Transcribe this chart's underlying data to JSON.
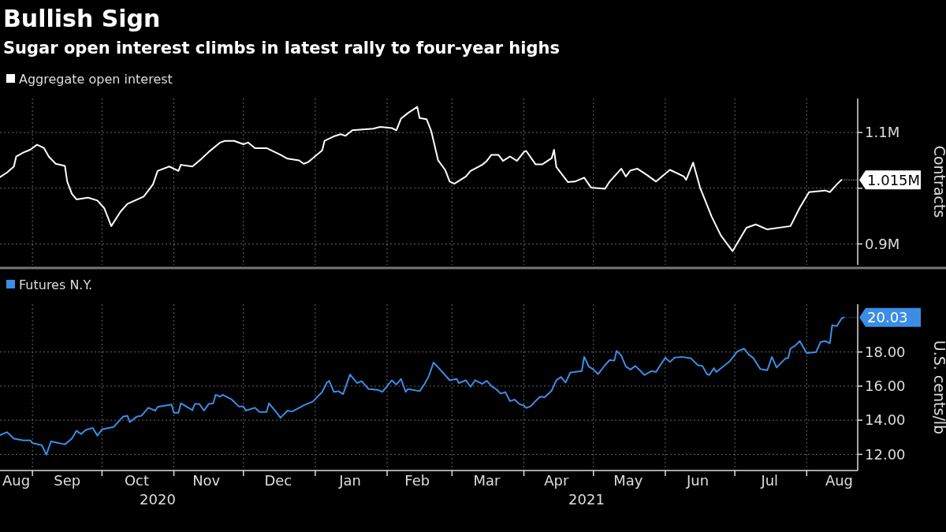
{
  "chart_data": [
    {
      "type": "line",
      "title": "Bullish Sign",
      "subtitle": "Sugar open interest climbs in latest rally to four-year highs",
      "ylabel": "Contracts",
      "legend": "top left",
      "grid": true,
      "tick_labels": "y",
      "xlim": [
        "2020-08-18",
        "2021-08-23"
      ],
      "xticks": [
        {
          "value": "2020-09-01",
          "label": null
        },
        {
          "value": "2020-10-01",
          "label": null
        },
        {
          "value": "2020-11-01",
          "label": null
        },
        {
          "value": "2020-12-01",
          "label": null
        },
        {
          "value": "2021-01-01",
          "label": null
        },
        {
          "value": "2021-02-01",
          "label": null
        },
        {
          "value": "2021-03-01",
          "label": null
        },
        {
          "value": "2021-04-01",
          "label": null
        },
        {
          "value": "2021-05-01",
          "label": null
        },
        {
          "value": "2021-06-01",
          "label": null
        },
        {
          "value": "2021-07-01",
          "label": null
        },
        {
          "value": "2021-08-01",
          "label": null
        }
      ],
      "ylim": [
        862500,
        1161000
      ],
      "yticks": [
        {
          "value": 900000,
          "label": "0.9M"
        },
        {
          "value": 1000000,
          "label": null
        },
        {
          "value": 1100000,
          "label": "1.1M"
        }
      ],
      "annotations": [
        {
          "text": "1.015M",
          "x": "2021-08-16",
          "y": 1015000
        }
      ],
      "series": [
        {
          "name": "Aggregate open interest",
          "color": "#ffffff",
          "x": [
            "2020-08-18",
            "2020-08-21",
            "2020-08-24",
            "2020-08-25",
            "2020-08-28",
            "2020-08-31",
            "2020-09-03",
            "2020-09-06",
            "2020-09-08",
            "2020-09-11",
            "2020-09-15",
            "2020-09-16",
            "2020-09-18",
            "2020-09-20",
            "2020-09-25",
            "2020-09-29",
            "2020-10-02",
            "2020-10-05",
            "2020-10-09",
            "2020-10-12",
            "2020-10-19",
            "2020-10-23",
            "2020-10-25",
            "2020-10-30",
            "2020-11-03",
            "2020-11-04",
            "2020-11-09",
            "2020-11-13",
            "2020-11-16",
            "2020-11-21",
            "2020-11-23",
            "2020-11-27",
            "2020-12-01",
            "2020-12-03",
            "2020-12-06",
            "2020-12-11",
            "2020-12-17",
            "2020-12-20",
            "2020-12-25",
            "2020-12-27",
            "2020-12-29",
            "2021-01-04",
            "2021-01-05",
            "2021-01-09",
            "2021-01-12",
            "2021-01-14",
            "2021-01-17",
            "2021-01-26",
            "2021-01-29",
            "2021-02-03",
            "2021-02-05",
            "2021-02-07",
            "2021-02-10",
            "2021-02-14",
            "2021-02-15",
            "2021-02-18",
            "2021-02-20",
            "2021-02-23",
            "2021-02-26",
            "2021-02-28",
            "2021-03-02",
            "2021-03-07",
            "2021-03-09",
            "2021-03-14",
            "2021-03-16",
            "2021-03-18",
            "2021-03-21",
            "2021-03-23",
            "2021-03-26",
            "2021-03-29",
            "2021-04-01",
            "2021-04-02",
            "2021-04-06",
            "2021-04-09",
            "2021-04-13",
            "2021-04-14",
            "2021-04-15",
            "2021-04-20",
            "2021-04-23",
            "2021-04-27",
            "2021-04-30",
            "2021-05-06",
            "2021-05-08",
            "2021-05-13",
            "2021-05-15",
            "2021-05-17",
            "2021-05-20",
            "2021-05-24",
            "2021-05-28",
            "2021-06-03",
            "2021-06-09",
            "2021-06-10",
            "2021-06-13",
            "2021-06-16",
            "2021-06-21",
            "2021-06-25",
            "2021-06-30",
            "2021-07-06",
            "2021-07-10",
            "2021-07-15",
            "2021-07-25",
            "2021-07-29",
            "2021-08-02",
            "2021-08-09",
            "2021-08-11",
            "2021-08-14",
            "2021-08-16"
          ],
          "values": [
            1020000,
            1028000,
            1039000,
            1057000,
            1064000,
            1069000,
            1078000,
            1072000,
            1057000,
            1044000,
            1040000,
            1012000,
            990000,
            980000,
            983000,
            978000,
            964000,
            932000,
            958000,
            972000,
            985000,
            1007000,
            1031000,
            1039000,
            1031000,
            1042000,
            1039000,
            1053000,
            1065000,
            1082000,
            1085000,
            1085000,
            1079000,
            1082000,
            1072000,
            1072000,
            1060000,
            1053000,
            1050000,
            1044000,
            1047000,
            1068000,
            1085000,
            1093000,
            1097000,
            1094000,
            1104000,
            1107000,
            1110000,
            1108000,
            1104000,
            1125000,
            1135000,
            1146000,
            1126000,
            1124000,
            1103000,
            1050000,
            1033000,
            1012000,
            1008000,
            1021000,
            1031000,
            1042000,
            1049000,
            1060000,
            1060000,
            1049000,
            1057000,
            1049000,
            1065000,
            1067000,
            1043000,
            1043000,
            1054000,
            1069000,
            1038000,
            1011000,
            1012000,
            1019000,
            1001000,
            999000,
            1012000,
            1035000,
            1021000,
            1032000,
            1035000,
            1024000,
            1012000,
            1033000,
            1021000,
            1015000,
            1046000,
            1001000,
            949000,
            915000,
            887000,
            929000,
            935000,
            926000,
            932000,
            965000,
            993000,
            996000,
            993000,
            1007000,
            1015000
          ]
        }
      ]
    },
    {
      "type": "line",
      "ylabel": "U.S. cents/lb",
      "legend": "top left",
      "grid": true,
      "xlim": [
        "2020-08-18",
        "2021-08-23"
      ],
      "xticks": [
        {
          "value": "2020-08-25",
          "label": "Aug"
        },
        {
          "value": "2020-09-01",
          "label": null
        },
        {
          "value": "2020-09-16",
          "label": "Sep"
        },
        {
          "value": "2020-10-01",
          "label": null
        },
        {
          "value": "2020-10-16",
          "label": "Oct"
        },
        {
          "value": "2020-11-01",
          "label": null
        },
        {
          "value": "2020-11-15",
          "label": "Nov"
        },
        {
          "value": "2020-12-01",
          "label": null
        },
        {
          "value": "2020-12-16",
          "label": "Dec"
        },
        {
          "value": "2021-01-01",
          "label": null
        },
        {
          "value": "2021-01-16",
          "label": "Jan"
        },
        {
          "value": "2021-02-01",
          "label": null
        },
        {
          "value": "2021-02-14",
          "label": "Feb"
        },
        {
          "value": "2021-03-01",
          "label": null
        },
        {
          "value": "2021-03-16",
          "label": "Mar"
        },
        {
          "value": "2021-04-01",
          "label": null
        },
        {
          "value": "2021-04-15",
          "label": "Apr"
        },
        {
          "value": "2021-05-01",
          "label": null
        },
        {
          "value": "2021-05-16",
          "label": "May"
        },
        {
          "value": "2021-06-01",
          "label": null
        },
        {
          "value": "2021-06-15",
          "label": "Jun"
        },
        {
          "value": "2021-07-01",
          "label": null
        },
        {
          "value": "2021-07-16",
          "label": "Jul"
        },
        {
          "value": "2021-08-01",
          "label": null
        },
        {
          "value": "2021-08-15",
          "label": "Aug"
        }
      ],
      "ylim": [
        11.05,
        20.8
      ],
      "yticks": [
        {
          "value": 12,
          "label": "12.00"
        },
        {
          "value": 14,
          "label": "14.00"
        },
        {
          "value": 16,
          "label": "16.00"
        },
        {
          "value": 18,
          "label": "18.00"
        }
      ],
      "annotations": [
        {
          "text": "20.03",
          "x": "2021-08-17",
          "y": 20.03
        },
        "2020",
        "2021"
      ],
      "series": [
        {
          "name": "Futures N.Y.",
          "color": "#3a8ee6",
          "x": [
            "2020-08-18",
            "2020-08-21",
            "2020-08-24",
            "2020-08-28",
            "2020-08-31",
            "2020-09-01",
            "2020-09-05",
            "2020-09-07",
            "2020-09-09",
            "2020-09-15",
            "2020-09-18",
            "2020-09-20",
            "2020-09-22",
            "2020-09-24",
            "2020-09-27",
            "2020-09-29",
            "2020-10-01",
            "2020-10-06",
            "2020-10-10",
            "2020-10-12",
            "2020-10-13",
            "2020-10-16",
            "2020-10-18",
            "2020-10-21",
            "2020-10-24",
            "2020-10-25",
            "2020-10-31",
            "2020-11-01",
            "2020-11-03",
            "2020-11-04",
            "2020-11-09",
            "2020-11-10",
            "2020-11-12",
            "2020-11-14",
            "2020-11-16",
            "2020-11-18",
            "2020-11-19",
            "2020-11-21",
            "2020-11-22",
            "2020-11-26",
            "2020-11-29",
            "2020-12-01",
            "2020-12-02",
            "2020-12-06",
            "2020-12-08",
            "2020-12-11",
            "2020-12-12",
            "2020-12-15",
            "2020-12-17",
            "2020-12-20",
            "2020-12-22",
            "2020-12-24",
            "2020-12-27",
            "2020-12-31",
            "2021-01-04",
            "2021-01-06",
            "2021-01-07",
            "2021-01-09",
            "2021-01-11",
            "2021-01-13",
            "2021-01-16",
            "2021-01-19",
            "2021-01-21",
            "2021-01-24",
            "2021-01-28",
            "2021-01-30",
            "2021-02-03",
            "2021-02-05",
            "2021-02-07",
            "2021-02-09",
            "2021-02-10",
            "2021-02-15",
            "2021-02-17",
            "2021-02-19",
            "2021-02-21",
            "2021-02-23",
            "2021-02-28",
            "2021-03-03",
            "2021-03-04",
            "2021-03-07",
            "2021-03-09",
            "2021-03-11",
            "2021-03-14",
            "2021-03-16",
            "2021-03-18",
            "2021-03-20",
            "2021-03-22",
            "2021-03-24",
            "2021-03-26",
            "2021-03-28",
            "2021-03-30",
            "2021-04-01",
            "2021-04-02",
            "2021-04-04",
            "2021-04-06",
            "2021-04-08",
            "2021-04-10",
            "2021-04-13",
            "2021-04-15",
            "2021-04-17",
            "2021-04-19",
            "2021-04-21",
            "2021-04-26",
            "2021-04-27",
            "2021-04-29",
            "2021-05-01",
            "2021-05-03",
            "2021-05-06",
            "2021-05-08",
            "2021-05-10",
            "2021-05-11",
            "2021-05-13",
            "2021-05-15",
            "2021-05-17",
            "2021-05-19",
            "2021-05-21",
            "2021-05-23",
            "2021-05-26",
            "2021-05-28",
            "2021-06-01",
            "2021-06-03",
            "2021-06-05",
            "2021-06-08",
            "2021-06-12",
            "2021-06-15",
            "2021-06-17",
            "2021-06-19",
            "2021-06-20",
            "2021-06-22",
            "2021-06-23",
            "2021-06-28",
            "2021-06-29",
            "2021-07-02",
            "2021-07-05",
            "2021-07-07",
            "2021-07-09",
            "2021-07-12",
            "2021-07-15",
            "2021-07-17",
            "2021-07-19",
            "2021-07-23",
            "2021-07-24",
            "2021-07-25",
            "2021-07-27",
            "2021-07-29",
            "2021-08-01",
            "2021-08-05",
            "2021-08-07",
            "2021-08-09",
            "2021-08-11",
            "2021-08-12",
            "2021-08-14",
            "2021-08-16",
            "2021-08-17"
          ],
          "values": [
            13.13,
            13.3,
            12.92,
            12.82,
            12.82,
            12.66,
            12.54,
            11.98,
            12.76,
            12.58,
            12.92,
            13.38,
            13.19,
            13.43,
            13.55,
            13.1,
            13.46,
            13.6,
            14.2,
            14.26,
            13.89,
            14.21,
            14.26,
            14.73,
            14.56,
            14.78,
            14.92,
            14.44,
            14.43,
            14.99,
            14.59,
            14.95,
            14.95,
            14.56,
            14.95,
            14.99,
            15.49,
            15.38,
            15.49,
            15.21,
            14.81,
            14.81,
            14.56,
            14.73,
            14.48,
            14.48,
            14.99,
            14.51,
            14.14,
            14.56,
            14.51,
            14.65,
            14.87,
            15.1,
            15.66,
            16.2,
            16.31,
            15.66,
            15.7,
            15.53,
            16.68,
            16.18,
            16.29,
            15.83,
            15.78,
            15.66,
            16.34,
            16.09,
            16.42,
            15.66,
            15.83,
            15.7,
            16.09,
            16.59,
            17.38,
            17.1,
            16.34,
            16.42,
            16.18,
            16.34,
            15.96,
            16.35,
            16.13,
            16.31,
            16.0,
            15.82,
            15.56,
            15.65,
            15.12,
            15.21,
            14.95,
            14.86,
            14.72,
            14.82,
            15.12,
            15.38,
            15.35,
            15.74,
            16.35,
            16.53,
            16.21,
            16.79,
            16.88,
            17.72,
            17.14,
            16.97,
            16.7,
            17.23,
            17.53,
            17.49,
            18.06,
            17.79,
            17.14,
            16.97,
            17.18,
            16.93,
            16.65,
            16.88,
            16.83,
            17.67,
            17.41,
            17.67,
            17.71,
            17.64,
            17.23,
            17.18,
            16.7,
            16.65,
            17.05,
            16.83,
            17.37,
            17.49,
            18.02,
            18.2,
            17.85,
            17.64,
            17.0,
            16.93,
            17.71,
            17.09,
            17.64,
            17.64,
            18.2,
            18.37,
            18.64,
            17.93,
            17.99,
            18.58,
            18.64,
            18.51,
            19.57,
            19.52,
            19.96,
            20.03
          ]
        }
      ]
    }
  ]
}
